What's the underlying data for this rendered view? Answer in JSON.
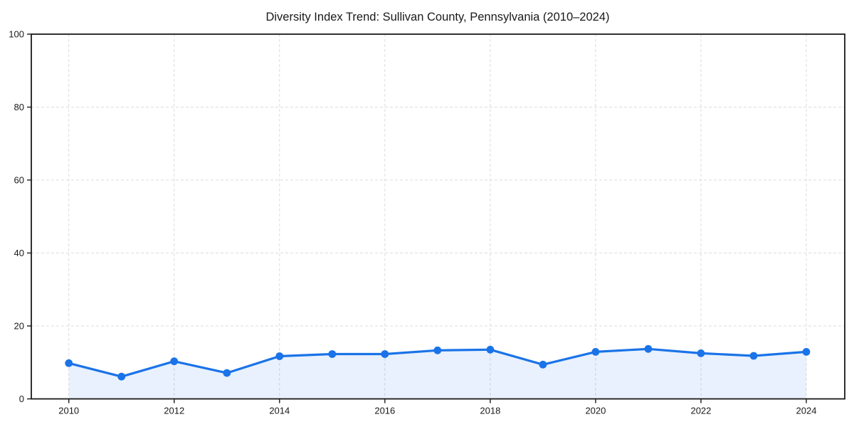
{
  "chart_data": {
    "type": "line",
    "title": "Diversity Index Trend: Sullivan County, Pennsylvania (2010–2024)",
    "x": [
      2010,
      2011,
      2012,
      2013,
      2014,
      2015,
      2016,
      2017,
      2018,
      2019,
      2020,
      2021,
      2022,
      2023,
      2024
    ],
    "values": [
      9.8,
      6.1,
      10.3,
      7.1,
      11.7,
      12.3,
      12.3,
      13.3,
      13.5,
      9.4,
      12.9,
      13.7,
      12.5,
      11.8,
      12.9
    ],
    "xlabel": "",
    "ylabel": "",
    "xticks": [
      "2010",
      "2012",
      "2014",
      "2016",
      "2018",
      "2020",
      "2022",
      "2024"
    ],
    "xtick_years": [
      2010,
      2012,
      2014,
      2016,
      2018,
      2020,
      2022,
      2024
    ],
    "yticks": [
      "0",
      "20",
      "40",
      "60",
      "80",
      "100"
    ],
    "ytick_values": [
      0,
      20,
      40,
      60,
      80,
      100
    ],
    "ylim": [
      0,
      100
    ],
    "grid": true,
    "legend": "none",
    "colors": {
      "line": "#1a73e8",
      "marker": "#1a73e8",
      "area_fill": "rgba(26, 115, 232, 0.10)",
      "gridline": "#dcdcdc",
      "axis": "#1a1a1a",
      "text": "#1a1a1a",
      "background": "#ffffff"
    }
  }
}
